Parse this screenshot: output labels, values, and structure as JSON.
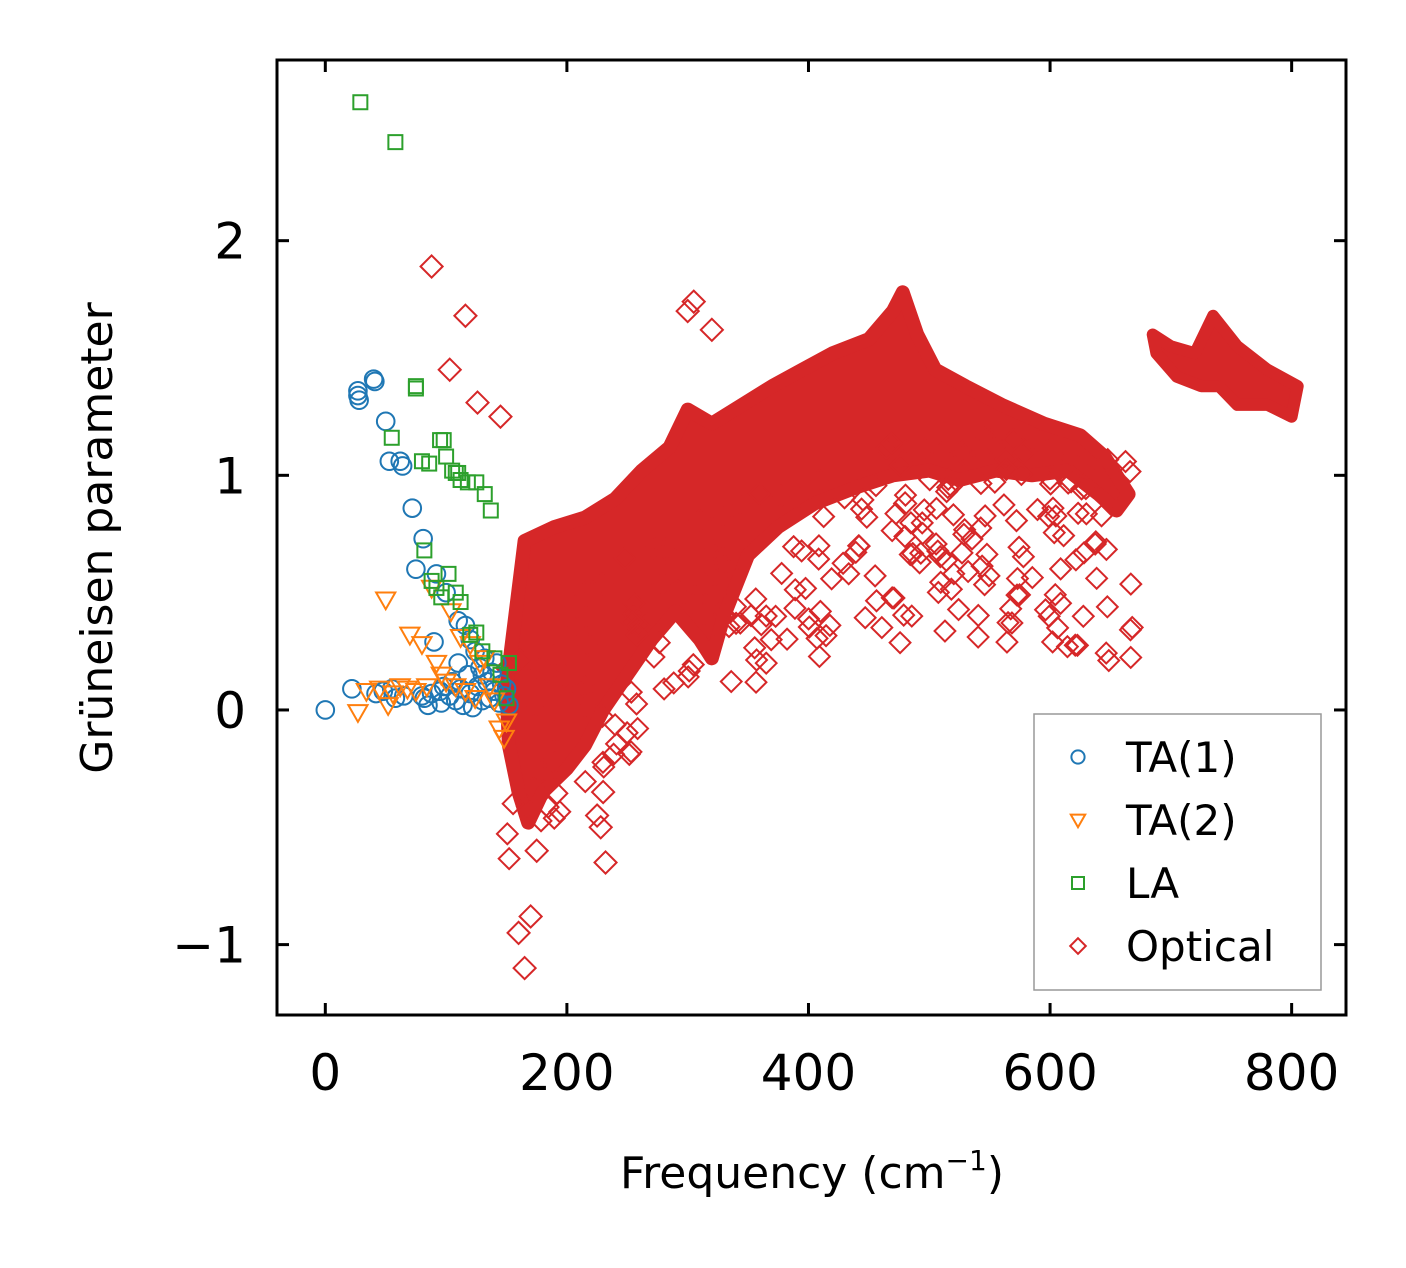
{
  "chart_data": {
    "type": "scatter",
    "title": "",
    "xlabel": "Frequency (cm",
    "xlabel_sup": "−1",
    "xlabel_end": ")",
    "ylabel": "Grüneisen parameter",
    "xlim": [
      -40,
      845
    ],
    "ylim": [
      -1.3,
      2.77
    ],
    "xticks": [
      0,
      200,
      400,
      600,
      800
    ],
    "yticks": [
      -1,
      0,
      1,
      2
    ],
    "ytick_labels": [
      "−1",
      "0",
      "1",
      "2"
    ],
    "grid": false,
    "legend_position": "bottom-right",
    "series": [
      {
        "name": "TA(1)",
        "marker": "circle",
        "color": "#1f77b4",
        "x": [
          0,
          22,
          27,
          27,
          28,
          40,
          41,
          42,
          48,
          50,
          53,
          55,
          58,
          62,
          64,
          65,
          72,
          75,
          80,
          81,
          82,
          88,
          90,
          92,
          95,
          96,
          98,
          100,
          103,
          105,
          108,
          110,
          112,
          114,
          116,
          118,
          120,
          122,
          124,
          126,
          128,
          130,
          132,
          134,
          136,
          138,
          140,
          142,
          144,
          146,
          148,
          150,
          152,
          85,
          110,
          120,
          130
        ],
        "y": [
          0.0,
          0.09,
          1.36,
          1.34,
          1.32,
          1.41,
          1.4,
          0.07,
          0.08,
          1.23,
          1.06,
          0.09,
          0.05,
          1.06,
          1.04,
          0.06,
          0.86,
          0.6,
          0.06,
          0.73,
          0.05,
          0.07,
          0.29,
          0.58,
          0.08,
          0.03,
          0.1,
          0.5,
          0.06,
          0.12,
          0.04,
          0.38,
          0.09,
          0.02,
          0.36,
          0.15,
          0.07,
          0.01,
          0.25,
          0.1,
          0.18,
          0.04,
          0.22,
          0.12,
          0.05,
          0.16,
          0.08,
          0.2,
          0.03,
          0.11,
          0.06,
          0.09,
          0.02,
          0.02,
          0.2,
          0.3,
          0.15
        ]
      },
      {
        "name": "TA(2)",
        "marker": "triangle-down",
        "color": "#ff7f0e",
        "x": [
          27,
          34,
          45,
          50,
          52,
          56,
          62,
          68,
          70,
          75,
          80,
          84,
          88,
          92,
          96,
          100,
          104,
          108,
          112,
          116,
          120,
          124,
          128,
          132,
          136,
          140,
          144,
          148,
          150
        ],
        "y": [
          -0.01,
          0.08,
          0.09,
          0.47,
          0.02,
          0.07,
          0.1,
          0.09,
          0.32,
          0.08,
          0.28,
          0.1,
          0.52,
          0.2,
          0.15,
          0.12,
          0.42,
          0.1,
          0.31,
          0.08,
          0.28,
          0.05,
          0.2,
          0.22,
          0.1,
          0.04,
          -0.08,
          -0.12,
          -0.05
        ]
      },
      {
        "name": "LA",
        "marker": "square",
        "color": "#2ca02c",
        "x": [
          29,
          58,
          75,
          75,
          55,
          80,
          86,
          95,
          98,
          100,
          105,
          108,
          110,
          112,
          118,
          125,
          132,
          137,
          82,
          88,
          92,
          96,
          102,
          108,
          112,
          120,
          125,
          130,
          140,
          145,
          150,
          152
        ],
        "y": [
          2.59,
          2.42,
          1.38,
          1.37,
          1.16,
          1.06,
          1.05,
          1.15,
          1.15,
          1.08,
          1.02,
          1.01,
          1.01,
          0.98,
          0.97,
          0.97,
          0.92,
          0.85,
          0.68,
          0.55,
          0.52,
          0.48,
          0.58,
          0.5,
          0.46,
          0.32,
          0.33,
          0.25,
          0.22,
          0.15,
          0.05,
          0.2
        ]
      },
      {
        "name": "Optical",
        "marker": "diamond",
        "color": "#d62728",
        "x": [
          88,
          116,
          103,
          126,
          145,
          160,
          165,
          170,
          175,
          230,
          228,
          232,
          225,
          480,
          492,
          615,
          305,
          320,
          300
        ],
        "y": [
          1.89,
          1.68,
          1.45,
          1.31,
          1.25,
          -0.95,
          -1.1,
          -0.88,
          -0.6,
          -0.35,
          -0.5,
          -0.65,
          -0.45,
          0.88,
          0.63,
          0.97,
          1.74,
          1.62,
          1.7
        ]
      }
    ]
  }
}
